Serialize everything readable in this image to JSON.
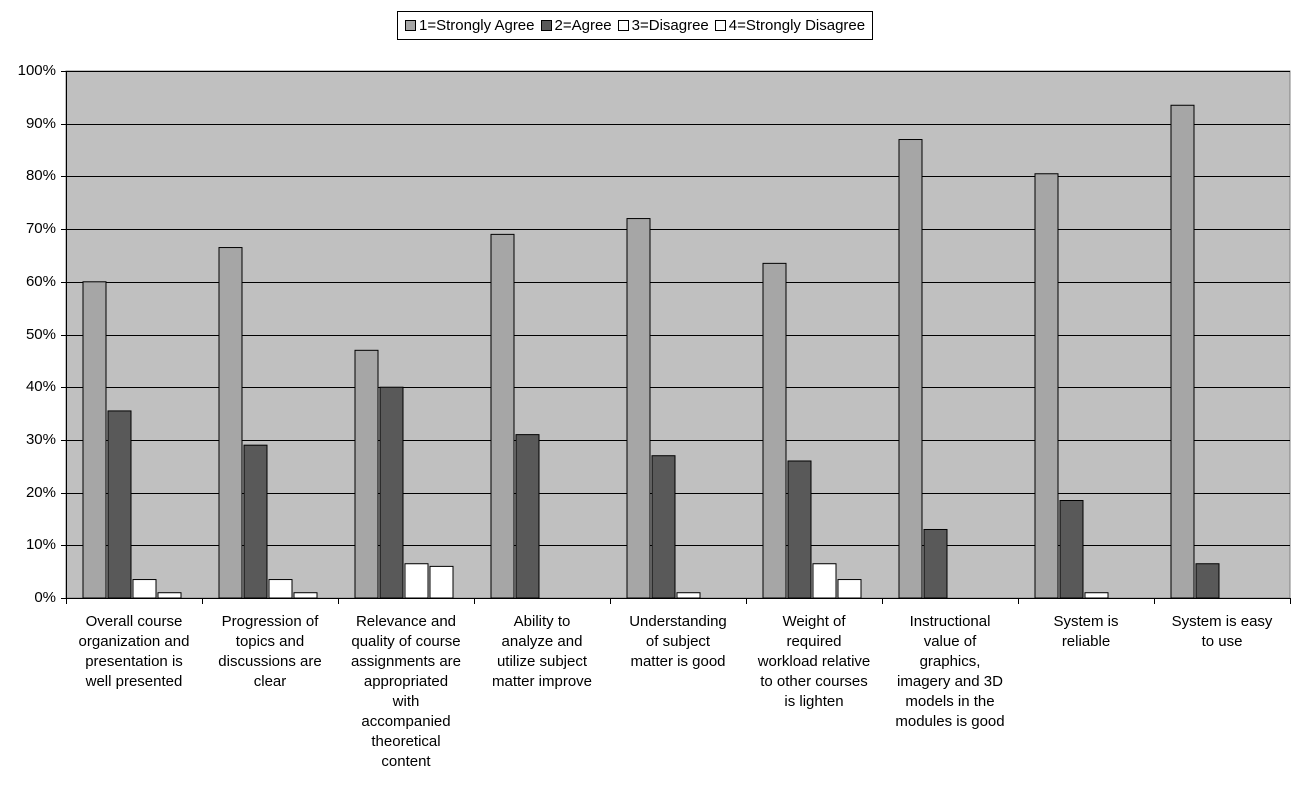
{
  "chart_data": {
    "type": "bar",
    "categories": [
      "Overall course organization and presentation is well presented",
      "Progression of topics and discussions are clear",
      "Relevance and quality of course assignments are appropriated with accompanied theoretical content",
      "Ability to analyze and utilize subject matter improve",
      "Understanding of subject matter is good",
      "Weight of required workload relative to other courses is lighten",
      "Instructional value of graphics, imagery and 3D models in the modules is good",
      "System is reliable",
      "System is easy to use"
    ],
    "category_lines": [
      [
        "Overall course",
        "organization and",
        "presentation is",
        "well presented"
      ],
      [
        "Progression of",
        "topics and",
        "discussions are",
        "clear"
      ],
      [
        "Relevance and",
        "quality of course",
        "assignments are",
        "appropriated",
        "with",
        "accompanied",
        "theoretical",
        "content"
      ],
      [
        "Ability to",
        "analyze and",
        "utilize subject",
        "matter improve"
      ],
      [
        "Understanding",
        "of subject",
        "matter is good"
      ],
      [
        "Weight of",
        "required",
        "workload relative",
        "to other courses",
        "is lighten"
      ],
      [
        "Instructional",
        "value of",
        "graphics,",
        "imagery and 3D",
        "models in the",
        "modules is good"
      ],
      [
        "System is",
        "reliable"
      ],
      [
        "System is easy",
        "to use"
      ]
    ],
    "series": [
      {
        "name": "1=Strongly Agree",
        "color": "#a6a6a6",
        "values": [
          60,
          66.5,
          47,
          69,
          72,
          63.5,
          87,
          80.5,
          93.5
        ]
      },
      {
        "name": "2=Agree",
        "color": "#595959",
        "values": [
          35.5,
          29,
          40,
          31,
          27,
          26,
          13,
          18.5,
          6.5
        ]
      },
      {
        "name": "3=Disagree",
        "color": "#ffffff",
        "values": [
          3.5,
          3.5,
          6.5,
          0,
          1,
          6.5,
          0,
          1,
          0
        ]
      },
      {
        "name": "4=Strongly Disagree",
        "color": "#ffffff",
        "values": [
          1,
          1,
          6,
          0,
          0,
          3.5,
          0,
          0,
          0
        ]
      }
    ],
    "yticks": [
      "0%",
      "10%",
      "20%",
      "30%",
      "40%",
      "50%",
      "60%",
      "70%",
      "80%",
      "90%",
      "100%"
    ],
    "ylim": [
      0,
      100
    ],
    "xlabel": "",
    "ylabel": "",
    "grid": true,
    "legend_position": "top-center",
    "plot_background": "#c0c0c0"
  }
}
